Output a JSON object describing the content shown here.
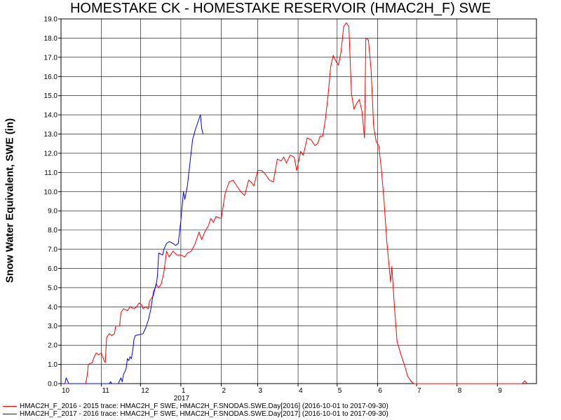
{
  "chart_data": {
    "type": "line",
    "title": "HOMESTAKE CK - HOMESTAKE RESERVOIR (HMAC2H_F) SWE",
    "ylabel": "Snow Water Equivalent, SWE (in)",
    "xlabel": "",
    "ylim": [
      0,
      19
    ],
    "yticks": [
      "0.0",
      "1.0",
      "2.0",
      "3.0",
      "4.0",
      "5.0",
      "6.0",
      "7.0",
      "8.0",
      "9.0",
      "10.0",
      "11.0",
      "12.0",
      "13.0",
      "14.0",
      "15.0",
      "16.0",
      "17.0",
      "18.0",
      "19.0"
    ],
    "xticks": [
      {
        "label": "10",
        "date": "2016-10-01"
      },
      {
        "label": "11",
        "date": "2016-11-01"
      },
      {
        "label": "12",
        "date": "2016-12-01"
      },
      {
        "label": "1",
        "date": "2017-01-01"
      },
      {
        "label": "2",
        "date": "2017-02-01"
      },
      {
        "label": "3",
        "date": "2017-03-01"
      },
      {
        "label": "4",
        "date": "2017-04-01"
      },
      {
        "label": "5",
        "date": "2017-05-01"
      },
      {
        "label": "6",
        "date": "2017-06-01"
      },
      {
        "label": "7",
        "date": "2017-07-01"
      },
      {
        "label": "8",
        "date": "2017-08-01"
      },
      {
        "label": "9",
        "date": "2017-09-01"
      }
    ],
    "year_label": "2017",
    "xlim": [
      "2016-10-01",
      "2017-09-30"
    ],
    "grid": true,
    "legend_placement": "bottom",
    "series": [
      {
        "name": "HMAC2H_F_2016 - 2015 trace: HMAC2H_F SWE, HMAC2H_F.SNODAS.SWE.Day[2016] (2016-10-01 to 2017-09-30)",
        "color": "#ff0000",
        "points": [
          [
            "2016-10-01",
            0
          ],
          [
            "2016-10-20",
            0
          ],
          [
            "2016-10-21",
            0.4
          ],
          [
            "2016-10-22",
            1.0
          ],
          [
            "2016-10-25",
            1.1
          ],
          [
            "2016-10-26",
            1.3
          ],
          [
            "2016-10-28",
            1.6
          ],
          [
            "2016-10-30",
            1.5
          ],
          [
            "2016-11-01",
            1.6
          ],
          [
            "2016-11-03",
            1.2
          ],
          [
            "2016-11-04",
            1.1
          ],
          [
            "2016-11-05",
            2.4
          ],
          [
            "2016-11-07",
            2.6
          ],
          [
            "2016-11-09",
            2.5
          ],
          [
            "2016-11-11",
            2.6
          ],
          [
            "2016-11-12",
            3.0
          ],
          [
            "2016-11-15",
            3.0
          ],
          [
            "2016-11-16",
            3.7
          ],
          [
            "2016-11-18",
            3.9
          ],
          [
            "2016-11-21",
            3.8
          ],
          [
            "2016-11-23",
            4.0
          ],
          [
            "2016-11-26",
            3.9
          ],
          [
            "2016-11-28",
            4.0
          ],
          [
            "2016-11-30",
            4.2
          ],
          [
            "2016-12-02",
            4.1
          ],
          [
            "2016-12-03",
            3.9
          ],
          [
            "2016-12-05",
            4.0
          ],
          [
            "2016-12-07",
            3.9
          ],
          [
            "2016-12-08",
            4.3
          ],
          [
            "2016-12-11",
            4.6
          ],
          [
            "2016-12-13",
            5.2
          ],
          [
            "2016-12-15",
            5.0
          ],
          [
            "2016-12-17",
            5.2
          ],
          [
            "2016-12-19",
            5.8
          ],
          [
            "2016-12-21",
            6.9
          ],
          [
            "2016-12-23",
            6.6
          ],
          [
            "2016-12-26",
            6.9
          ],
          [
            "2016-12-29",
            6.7
          ],
          [
            "2017-01-01",
            6.7
          ],
          [
            "2017-01-04",
            6.6
          ],
          [
            "2017-01-06",
            6.8
          ],
          [
            "2017-01-09",
            6.9
          ],
          [
            "2017-01-12",
            7.3
          ],
          [
            "2017-01-15",
            7.9
          ],
          [
            "2017-01-17",
            7.5
          ],
          [
            "2017-01-20",
            8.0
          ],
          [
            "2017-01-22",
            8.2
          ],
          [
            "2017-01-24",
            8.6
          ],
          [
            "2017-01-26",
            8.4
          ],
          [
            "2017-01-28",
            8.7
          ],
          [
            "2017-02-01",
            8.6
          ],
          [
            "2017-02-04",
            9.9
          ],
          [
            "2017-02-07",
            10.5
          ],
          [
            "2017-02-10",
            10.6
          ],
          [
            "2017-02-13",
            10.3
          ],
          [
            "2017-02-16",
            10.0
          ],
          [
            "2017-02-19",
            9.8
          ],
          [
            "2017-02-22",
            10.6
          ],
          [
            "2017-02-24",
            10.5
          ],
          [
            "2017-02-26",
            10.3
          ],
          [
            "2017-03-01",
            11.1
          ],
          [
            "2017-03-04",
            11.1
          ],
          [
            "2017-03-07",
            10.9
          ],
          [
            "2017-03-10",
            10.6
          ],
          [
            "2017-03-13",
            10.5
          ],
          [
            "2017-03-16",
            11.7
          ],
          [
            "2017-03-19",
            11.6
          ],
          [
            "2017-03-21",
            11.8
          ],
          [
            "2017-03-23",
            11.5
          ],
          [
            "2017-03-26",
            11.9
          ],
          [
            "2017-03-29",
            11.8
          ],
          [
            "2017-03-31",
            11.1
          ],
          [
            "2017-04-03",
            12.1
          ],
          [
            "2017-04-05",
            11.9
          ],
          [
            "2017-04-08",
            12.8
          ],
          [
            "2017-04-11",
            12.7
          ],
          [
            "2017-04-14",
            12.4
          ],
          [
            "2017-04-16",
            12.5
          ],
          [
            "2017-04-18",
            12.9
          ],
          [
            "2017-04-20",
            12.9
          ],
          [
            "2017-04-22",
            13.8
          ],
          [
            "2017-04-24",
            15.0
          ],
          [
            "2017-04-26",
            16.5
          ],
          [
            "2017-04-28",
            17.1
          ],
          [
            "2017-04-30",
            16.8
          ],
          [
            "2017-05-02",
            16.6
          ],
          [
            "2017-05-04",
            17.3
          ],
          [
            "2017-05-06",
            18.6
          ],
          [
            "2017-05-08",
            18.8
          ],
          [
            "2017-05-10",
            18.6
          ],
          [
            "2017-05-12",
            15.1
          ],
          [
            "2017-05-14",
            14.3
          ],
          [
            "2017-05-16",
            14.6
          ],
          [
            "2017-05-18",
            14.8
          ],
          [
            "2017-05-20",
            14.2
          ],
          [
            "2017-05-22",
            12.8
          ],
          [
            "2017-05-23",
            18.0
          ],
          [
            "2017-05-25",
            17.9
          ],
          [
            "2017-05-27",
            16.4
          ],
          [
            "2017-05-29",
            13.4
          ],
          [
            "2017-05-31",
            12.6
          ],
          [
            "2017-06-02",
            12.4
          ],
          [
            "2017-06-04",
            11.1
          ],
          [
            "2017-06-06",
            9.5
          ],
          [
            "2017-06-08",
            7.5
          ],
          [
            "2017-06-10",
            6.0
          ],
          [
            "2017-06-11",
            5.3
          ],
          [
            "2017-06-12",
            6.1
          ],
          [
            "2017-06-14",
            4.0
          ],
          [
            "2017-06-16",
            2.2
          ],
          [
            "2017-06-19",
            1.5
          ],
          [
            "2017-06-22",
            0.9
          ],
          [
            "2017-06-24",
            0.4
          ],
          [
            "2017-06-27",
            0.1
          ],
          [
            "2017-06-29",
            0
          ],
          [
            "2017-09-20",
            0
          ],
          [
            "2017-09-22",
            0.15
          ],
          [
            "2017-09-24",
            0
          ]
        ]
      },
      {
        "name": "HMAC2H_F_2017 - 2016 trace: HMAC2H_F SWE, HMAC2H_F.SNODAS.SWE.Day[2017] (2016-10-01 to 2017-09-30)",
        "color": "#0000ff",
        "points": [
          [
            "2016-10-01",
            0
          ],
          [
            "2016-10-04",
            0
          ],
          [
            "2016-10-05",
            0.3
          ],
          [
            "2016-10-07",
            0
          ],
          [
            "2016-11-07",
            0
          ],
          [
            "2016-11-08",
            0.1
          ],
          [
            "2016-11-09",
            0
          ],
          [
            "2016-11-14",
            0
          ],
          [
            "2016-11-16",
            0.3
          ],
          [
            "2016-11-17",
            0.1
          ],
          [
            "2016-11-18",
            0.5
          ],
          [
            "2016-11-19",
            0.6
          ],
          [
            "2016-11-20",
            0.8
          ],
          [
            "2016-11-21",
            1.3
          ],
          [
            "2016-11-22",
            1.2
          ],
          [
            "2016-11-23",
            1.4
          ],
          [
            "2016-11-24",
            1.3
          ],
          [
            "2016-11-25",
            1.7
          ],
          [
            "2016-11-26",
            2.3
          ],
          [
            "2016-11-27",
            2.5
          ],
          [
            "2016-12-03",
            2.6
          ],
          [
            "2016-12-05",
            2.9
          ],
          [
            "2016-12-07",
            3.3
          ],
          [
            "2016-12-09",
            3.9
          ],
          [
            "2016-12-11",
            4.8
          ],
          [
            "2016-12-13",
            5.1
          ],
          [
            "2016-12-14",
            5.6
          ],
          [
            "2016-12-15",
            6.8
          ],
          [
            "2016-12-18",
            6.7
          ],
          [
            "2016-12-19",
            7.0
          ],
          [
            "2016-12-21",
            7.3
          ],
          [
            "2016-12-23",
            7.4
          ],
          [
            "2016-12-26",
            7.3
          ],
          [
            "2016-12-28",
            7.2
          ],
          [
            "2016-12-30",
            7.3
          ],
          [
            "2017-01-01",
            8.5
          ],
          [
            "2017-01-03",
            10.0
          ],
          [
            "2017-01-04",
            9.6
          ],
          [
            "2017-01-06",
            10.3
          ],
          [
            "2017-01-08",
            11.5
          ],
          [
            "2017-01-10",
            12.7
          ],
          [
            "2017-01-12",
            13.2
          ],
          [
            "2017-01-14",
            13.6
          ],
          [
            "2017-01-16",
            14.0
          ],
          [
            "2017-01-17",
            13.3
          ],
          [
            "2017-01-18",
            13.0
          ]
        ]
      }
    ]
  }
}
